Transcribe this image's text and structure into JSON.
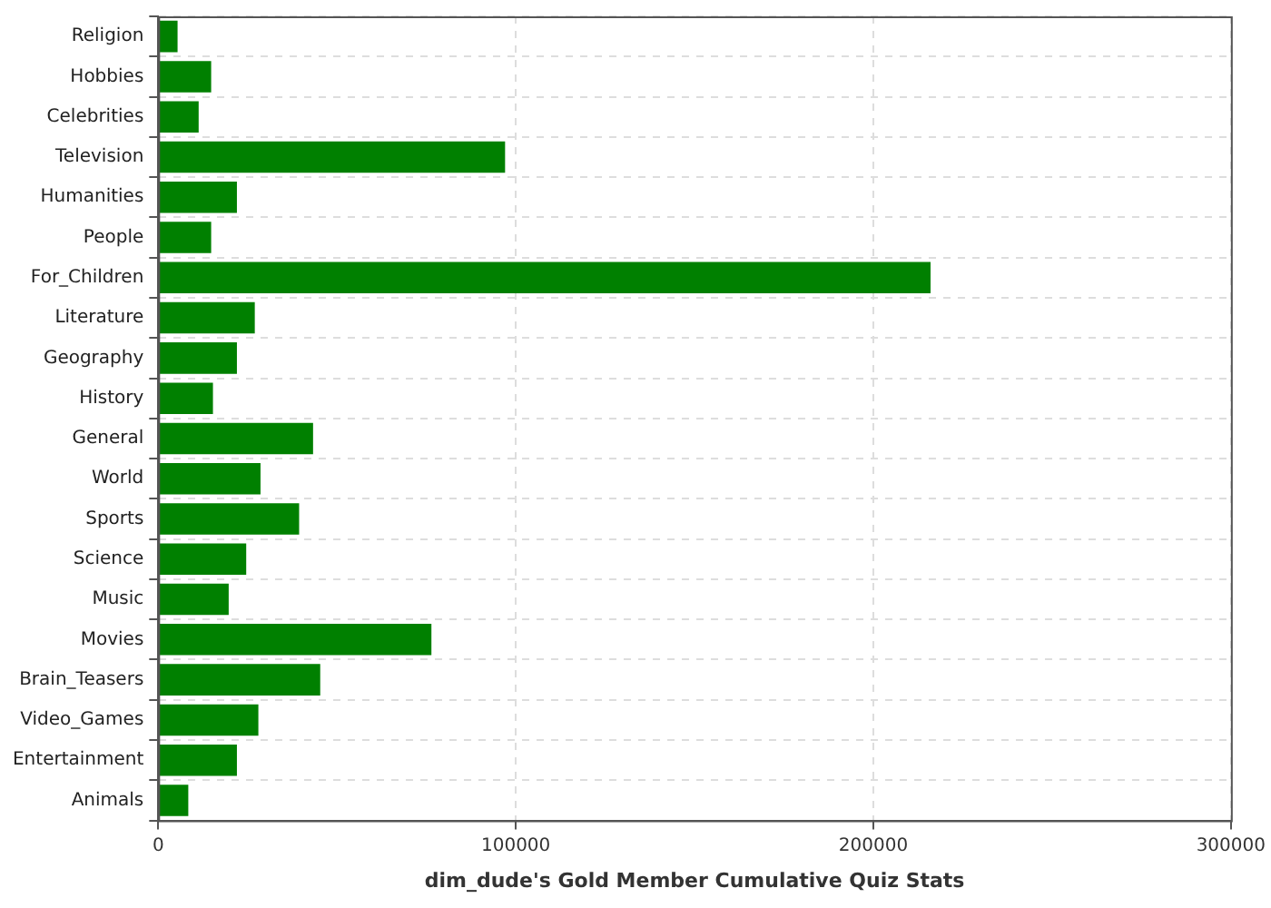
{
  "chart_data": {
    "type": "bar",
    "orientation": "horizontal",
    "xlabel": "dim_dude's Gold Member Cumulative Quiz Stats",
    "categories": [
      "Religion",
      "Hobbies",
      "Celebrities",
      "Television",
      "Humanities",
      "People",
      "For_Children",
      "Literature",
      "Geography",
      "History",
      "General",
      "World",
      "Sports",
      "Science",
      "Music",
      "Movies",
      "Brain_Teasers",
      "Video_Games",
      "Entertainment",
      "Animals"
    ],
    "values": [
      5400,
      14800,
      11300,
      97000,
      22000,
      14800,
      216000,
      27000,
      22000,
      15300,
      43300,
      28600,
      39400,
      24600,
      19700,
      76400,
      45300,
      28000,
      22000,
      8400
    ],
    "color": "#008000",
    "xlim": [
      0,
      300000
    ],
    "xticks": [
      0,
      100000,
      200000,
      300000
    ],
    "grid": true,
    "legend": false
  }
}
